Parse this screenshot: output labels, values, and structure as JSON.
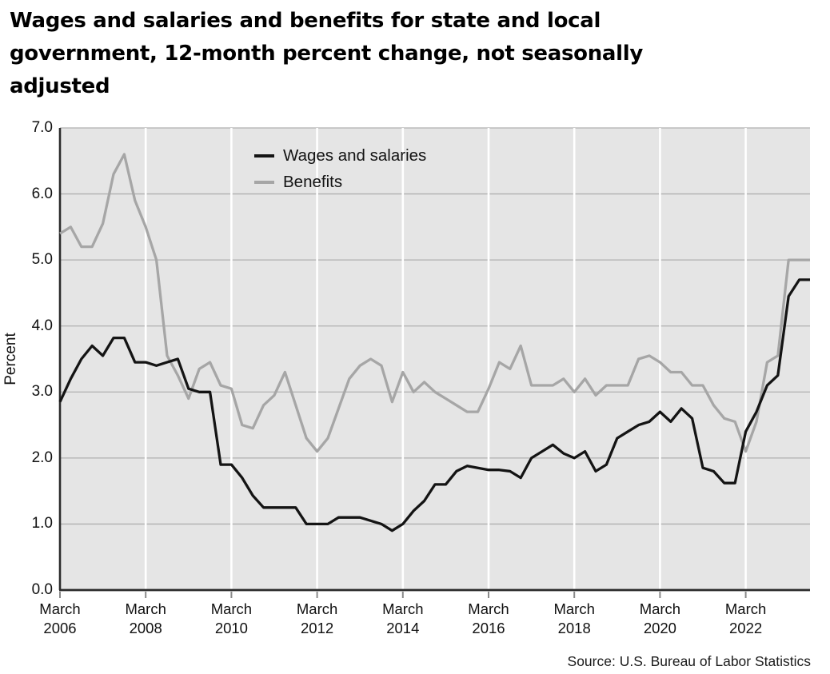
{
  "title_lines": [
    "Wages and salaries and benefits for state and local",
    "government, 12-month percent change, not seasonally",
    "adjusted"
  ],
  "source_note": "Source: U.S. Bureau of Labor Statistics",
  "y_axis": {
    "label": "Percent",
    "tick_labels": [
      "0.0",
      "1.0",
      "2.0",
      "3.0",
      "4.0",
      "5.0",
      "6.0",
      "7.0"
    ],
    "min": 0,
    "max": 7
  },
  "x_axis": {
    "month_word": "March",
    "tick_years": [
      "2006",
      "2008",
      "2010",
      "2012",
      "2014",
      "2016",
      "2018",
      "2020",
      "2022"
    ]
  },
  "colors": {
    "background": "#ffffff",
    "plot_bg": "#e5e5e5",
    "h_grid": "#b0b0b0",
    "v_grid": "#ffffff",
    "axis": "#2b2b2b",
    "tick": "#8a8a8a",
    "wages_line": "#141414",
    "benefits_line": "#a6a6a6"
  },
  "chart_data": {
    "type": "line",
    "title": "Wages and salaries and benefits for state and local government, 12-month percent change, not seasonally adjusted",
    "xlabel": "",
    "ylabel": "Percent",
    "ylim": [
      0,
      7
    ],
    "x_start": "March 2006",
    "x_end": "September 2023",
    "frequency": "quarterly",
    "grid": "horizontal gray lines at integers; vertical white lines at biennial March ticks",
    "legend_position": "inside plot, upper left-center",
    "series": [
      {
        "name": "Wages and salaries",
        "color": "#141414",
        "values": [
          2.85,
          3.2,
          3.5,
          3.7,
          3.55,
          3.82,
          3.82,
          3.45,
          3.45,
          3.4,
          3.45,
          3.5,
          3.05,
          3.0,
          3.0,
          1.9,
          1.9,
          1.7,
          1.43,
          1.25,
          1.25,
          1.25,
          1.25,
          1.0,
          1.0,
          1.0,
          1.1,
          1.1,
          1.1,
          1.05,
          1.0,
          0.9,
          1.0,
          1.2,
          1.35,
          1.6,
          1.6,
          1.8,
          1.88,
          1.85,
          1.82,
          1.82,
          1.8,
          1.7,
          2.0,
          2.1,
          2.2,
          2.07,
          2.0,
          2.1,
          1.8,
          1.9,
          2.3,
          2.4,
          2.5,
          2.55,
          2.7,
          2.55,
          2.75,
          2.6,
          1.85,
          1.8,
          1.62,
          1.62,
          2.4,
          2.7,
          3.1,
          3.25,
          4.45,
          4.7,
          4.7
        ]
      },
      {
        "name": "Benefits",
        "color": "#a6a6a6",
        "values": [
          5.4,
          5.5,
          5.2,
          5.2,
          5.55,
          6.3,
          6.6,
          5.9,
          5.5,
          5.0,
          3.55,
          3.25,
          2.9,
          3.35,
          3.45,
          3.1,
          3.05,
          2.5,
          2.45,
          2.8,
          2.95,
          3.3,
          2.8,
          2.3,
          2.1,
          2.3,
          2.75,
          3.2,
          3.4,
          3.5,
          3.4,
          2.85,
          3.3,
          3.0,
          3.15,
          3.0,
          2.9,
          2.8,
          2.7,
          2.7,
          3.05,
          3.45,
          3.35,
          3.7,
          3.1,
          3.1,
          3.1,
          3.2,
          3.0,
          3.2,
          2.95,
          3.1,
          3.1,
          3.1,
          3.5,
          3.55,
          3.45,
          3.3,
          3.3,
          3.1,
          3.1,
          2.8,
          2.6,
          2.55,
          2.1,
          2.55,
          3.45,
          3.55,
          5.0,
          5.0,
          5.0
        ]
      }
    ]
  }
}
